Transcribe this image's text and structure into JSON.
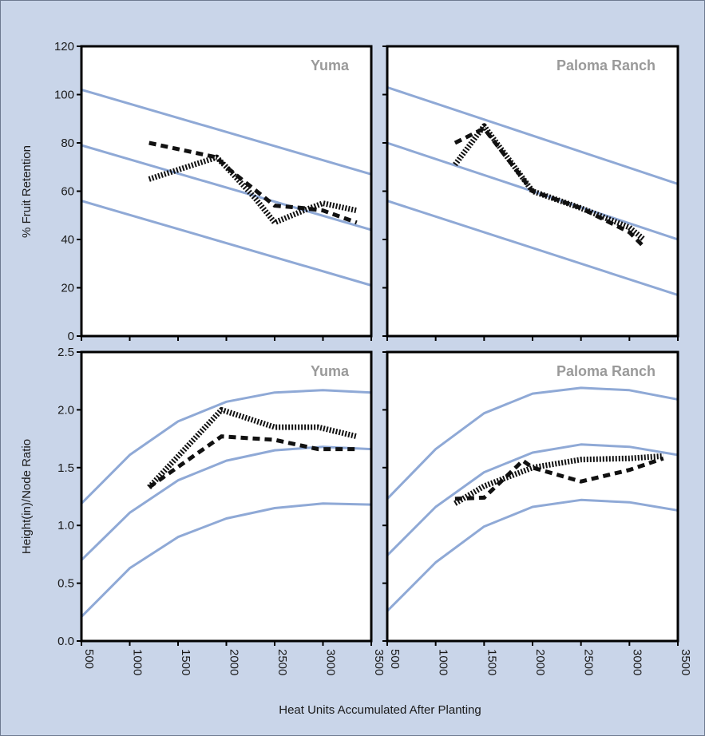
{
  "chart_data": {
    "type": "line",
    "xlabel": "Heat Units Accumulated After Planting",
    "x_ticks": [
      "500",
      "1000",
      "1500",
      "2000",
      "2500",
      "3000",
      "3500"
    ],
    "xlim": [
      500,
      3500
    ],
    "band_color": "#8fa9d6",
    "series_color": "#111111",
    "rows": [
      {
        "ylabel": "% Fruit Retention",
        "ylim": [
          0,
          120
        ],
        "y_ticks": [
          {
            "value": 0,
            "label": "0"
          },
          {
            "value": 20,
            "label": "20"
          },
          {
            "value": 40,
            "label": "40"
          },
          {
            "value": 60,
            "label": "60"
          },
          {
            "value": 80,
            "label": "80"
          },
          {
            "value": 100,
            "label": "100"
          },
          {
            "value": 120,
            "label": "120"
          }
        ]
      },
      {
        "ylabel": "Height(in)/Node Ratio",
        "ylim": [
          0,
          2.5
        ],
        "y_ticks": [
          {
            "value": 0,
            "label": "0.0"
          },
          {
            "value": 0.5,
            "label": "0.5"
          },
          {
            "value": 1.0,
            "label": "1.0"
          },
          {
            "value": 1.5,
            "label": "1.5"
          },
          {
            "value": 2.0,
            "label": "2.0"
          },
          {
            "value": 2.5,
            "label": "2.5"
          }
        ]
      }
    ],
    "panels": [
      {
        "label": "Yuma",
        "bands": [
          {
            "x": [
              500,
              3500
            ],
            "y": [
              102,
              67
            ]
          },
          {
            "x": [
              500,
              3500
            ],
            "y": [
              79,
              44
            ]
          },
          {
            "x": [
              500,
              3500
            ],
            "y": [
              56,
              21
            ]
          }
        ],
        "series": [
          {
            "style": "dashed",
            "x": [
              1200,
              1900,
              2000,
              2500,
              2800,
              3000,
              3350
            ],
            "y": [
              80,
              74,
              70,
              54,
              53,
              52,
              47
            ]
          },
          {
            "style": "dotted",
            "x": [
              1200,
              1900,
              2000,
              2300,
              2500,
              2800,
              3000,
              3350
            ],
            "y": [
              65,
              74,
              70,
              57,
              47,
              52,
              55,
              52
            ]
          }
        ]
      },
      {
        "label": "Paloma Ranch",
        "bands": [
          {
            "x": [
              500,
              3500
            ],
            "y": [
              103,
              63
            ]
          },
          {
            "x": [
              500,
              3500
            ],
            "y": [
              80,
              40
            ]
          },
          {
            "x": [
              500,
              3500
            ],
            "y": [
              56,
              17
            ]
          }
        ],
        "series": [
          {
            "style": "dashed",
            "x": [
              1200,
              1500,
              2000,
              2500,
              3000,
              3150
            ],
            "y": [
              80,
              86,
              60,
              53,
              43,
              37
            ]
          },
          {
            "style": "dotted",
            "x": [
              1200,
              1500,
              2000,
              2500,
              3000,
              3150
            ],
            "y": [
              71,
              87,
              60,
              53,
              45,
              40
            ]
          }
        ]
      },
      {
        "label": "Yuma",
        "bands": [
          {
            "x": [
              500,
              1000,
              1500,
              2000,
              2500,
              3000,
              3500
            ],
            "y": [
              1.19,
              1.61,
              1.9,
              2.07,
              2.15,
              2.17,
              2.15
            ]
          },
          {
            "x": [
              500,
              1000,
              1500,
              2000,
              2500,
              3000,
              3500
            ],
            "y": [
              0.7,
              1.11,
              1.39,
              1.56,
              1.65,
              1.68,
              1.66
            ]
          },
          {
            "x": [
              500,
              1000,
              1500,
              2000,
              2500,
              3000,
              3500
            ],
            "y": [
              0.21,
              0.63,
              0.9,
              1.06,
              1.15,
              1.19,
              1.18
            ]
          }
        ],
        "series": [
          {
            "style": "dashed",
            "x": [
              1200,
              1950,
              2500,
              2950,
              3350
            ],
            "y": [
              1.33,
              1.77,
              1.74,
              1.66,
              1.66
            ]
          },
          {
            "style": "dotted",
            "x": [
              1200,
              1950,
              2500,
              2950,
              3350
            ],
            "y": [
              1.33,
              2.0,
              1.85,
              1.85,
              1.77
            ]
          }
        ]
      },
      {
        "label": "Paloma Ranch",
        "bands": [
          {
            "x": [
              500,
              1000,
              1500,
              2000,
              2500,
              3000,
              3500
            ],
            "y": [
              1.23,
              1.66,
              1.97,
              2.14,
              2.19,
              2.17,
              2.09
            ]
          },
          {
            "x": [
              500,
              1000,
              1500,
              2000,
              2500,
              3000,
              3500
            ],
            "y": [
              0.74,
              1.16,
              1.46,
              1.63,
              1.7,
              1.68,
              1.61
            ]
          },
          {
            "x": [
              500,
              1000,
              1500,
              2000,
              2500,
              3000,
              3500
            ],
            "y": [
              0.26,
              0.68,
              0.99,
              1.16,
              1.22,
              1.2,
              1.13
            ]
          }
        ],
        "series": [
          {
            "style": "dashed",
            "x": [
              1200,
              1500,
              1900,
              2000,
              2500,
              3000,
              3350
            ],
            "y": [
              1.23,
              1.24,
              1.56,
              1.5,
              1.38,
              1.48,
              1.58
            ]
          },
          {
            "style": "dotted",
            "x": [
              1200,
              1500,
              2000,
              2500,
              3000,
              3350
            ],
            "y": [
              1.19,
              1.34,
              1.5,
              1.57,
              1.58,
              1.6
            ]
          }
        ]
      }
    ]
  }
}
